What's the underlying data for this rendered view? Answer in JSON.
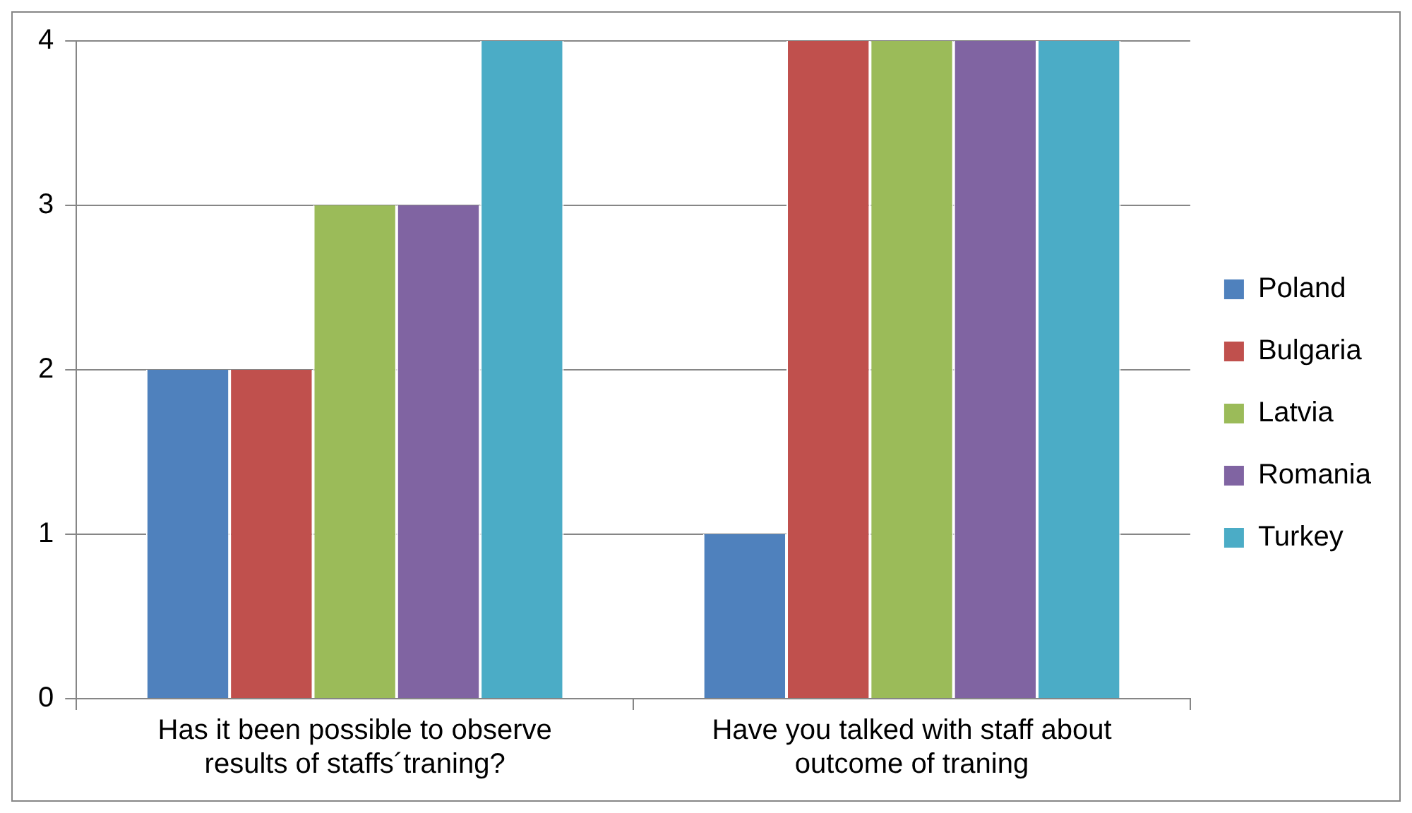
{
  "chart_data": {
    "type": "bar",
    "categories": [
      "Has it been possible to observe results of staffs´traning?",
      "Have you talked with staff about outcome of traning"
    ],
    "series": [
      {
        "name": "Poland",
        "color": "#4f81bd",
        "values": [
          2,
          1
        ]
      },
      {
        "name": "Bulgaria",
        "color": "#c0504d",
        "values": [
          2,
          4
        ]
      },
      {
        "name": "Latvia",
        "color": "#9bbb59",
        "values": [
          3,
          4
        ]
      },
      {
        "name": "Romania",
        "color": "#8064a2",
        "values": [
          3,
          4
        ]
      },
      {
        "name": "Turkey",
        "color": "#4bacc6",
        "values": [
          4,
          4
        ]
      }
    ],
    "ylim": [
      0,
      4
    ],
    "yticks": [
      0,
      1,
      2,
      3,
      4
    ],
    "grid": "y",
    "legend": "right"
  }
}
